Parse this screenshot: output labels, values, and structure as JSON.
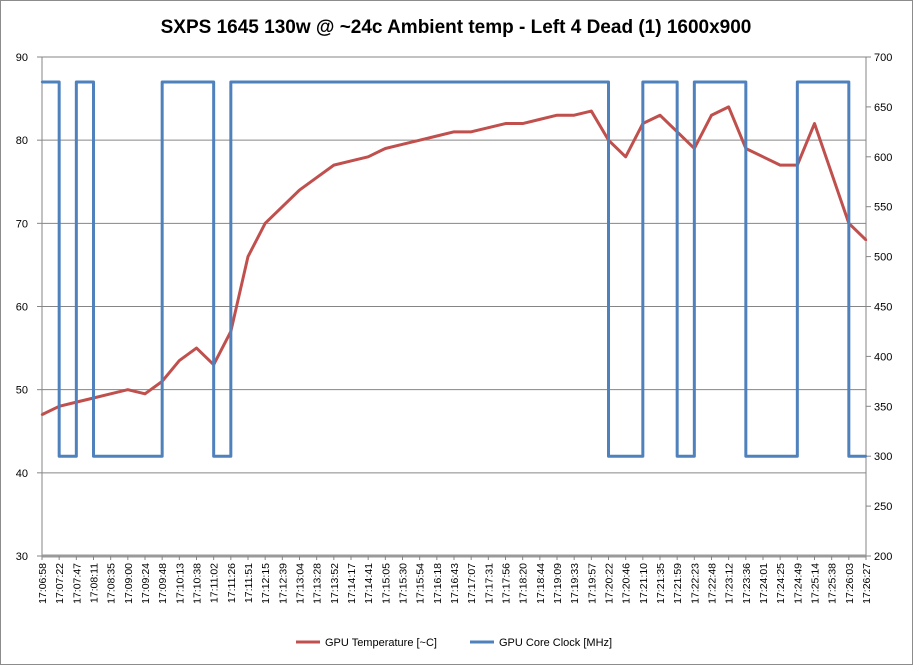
{
  "chart_data": {
    "type": "line",
    "title": "SXPS 1645 130w @ ~24c Ambient temp - Left 4 Dead (1) 1600x900",
    "xlabel": "",
    "ylabel": "",
    "ylim": [
      30,
      90
    ],
    "y2lim": [
      200,
      700
    ],
    "yticks": [
      "30",
      "40",
      "50",
      "60",
      "70",
      "80",
      "90"
    ],
    "y2ticks": [
      "200",
      "250",
      "300",
      "350",
      "400",
      "450",
      "500",
      "550",
      "600",
      "650",
      "700"
    ],
    "grid": true,
    "legend_position": "bottom",
    "categories": [
      "17:06:58",
      "17:07:22",
      "17:07:47",
      "17:08:11",
      "17:08:35",
      "17:09:00",
      "17:09:24",
      "17:09:48",
      "17:10:13",
      "17:10:38",
      "17:11:02",
      "17:11:26",
      "17:11:51",
      "17:12:15",
      "17:12:39",
      "17:13:04",
      "17:13:28",
      "17:13:52",
      "17:14:17",
      "17:14:41",
      "17:15:05",
      "17:15:30",
      "17:15:54",
      "17:16:18",
      "17:16:43",
      "17:17:07",
      "17:17:31",
      "17:17:56",
      "17:18:20",
      "17:18:44",
      "17:19:09",
      "17:19:33",
      "17:19:57",
      "17:20:22",
      "17:20:46",
      "17:21:10",
      "17:21:35",
      "17:21:59",
      "17:22:23",
      "17:22:48",
      "17:23:12",
      "17:23:36",
      "17:24:01",
      "17:24:25",
      "17:24:49",
      "17:25:14",
      "17:25:38",
      "17:26:03",
      "17:26:27"
    ],
    "series": [
      {
        "name": "GPU Temperature [~C]",
        "axis": "left",
        "color": "#c0504d",
        "values": [
          47,
          48,
          48.5,
          49,
          49.5,
          50,
          49.5,
          51,
          53.5,
          55,
          53,
          57,
          66,
          70,
          72,
          74,
          75.5,
          77,
          77.5,
          78,
          79,
          79.5,
          80,
          80.5,
          81,
          81,
          81.5,
          82,
          82,
          82.5,
          83,
          83,
          83.5,
          80,
          78,
          82,
          83,
          81,
          79,
          83,
          84,
          79,
          78,
          77,
          77,
          82,
          76,
          70,
          68
        ]
      },
      {
        "name": "GPU Core Clock [MHz]",
        "axis": "right",
        "color": "#4f81bd",
        "values": [
          675,
          300,
          675,
          300,
          300,
          300,
          300,
          675,
          675,
          675,
          300,
          675,
          675,
          675,
          675,
          675,
          675,
          675,
          675,
          675,
          675,
          675,
          675,
          675,
          675,
          675,
          675,
          675,
          675,
          675,
          675,
          675,
          675,
          300,
          300,
          675,
          675,
          300,
          675,
          675,
          675,
          300,
          300,
          300,
          675,
          675,
          675,
          300,
          300
        ]
      }
    ]
  }
}
